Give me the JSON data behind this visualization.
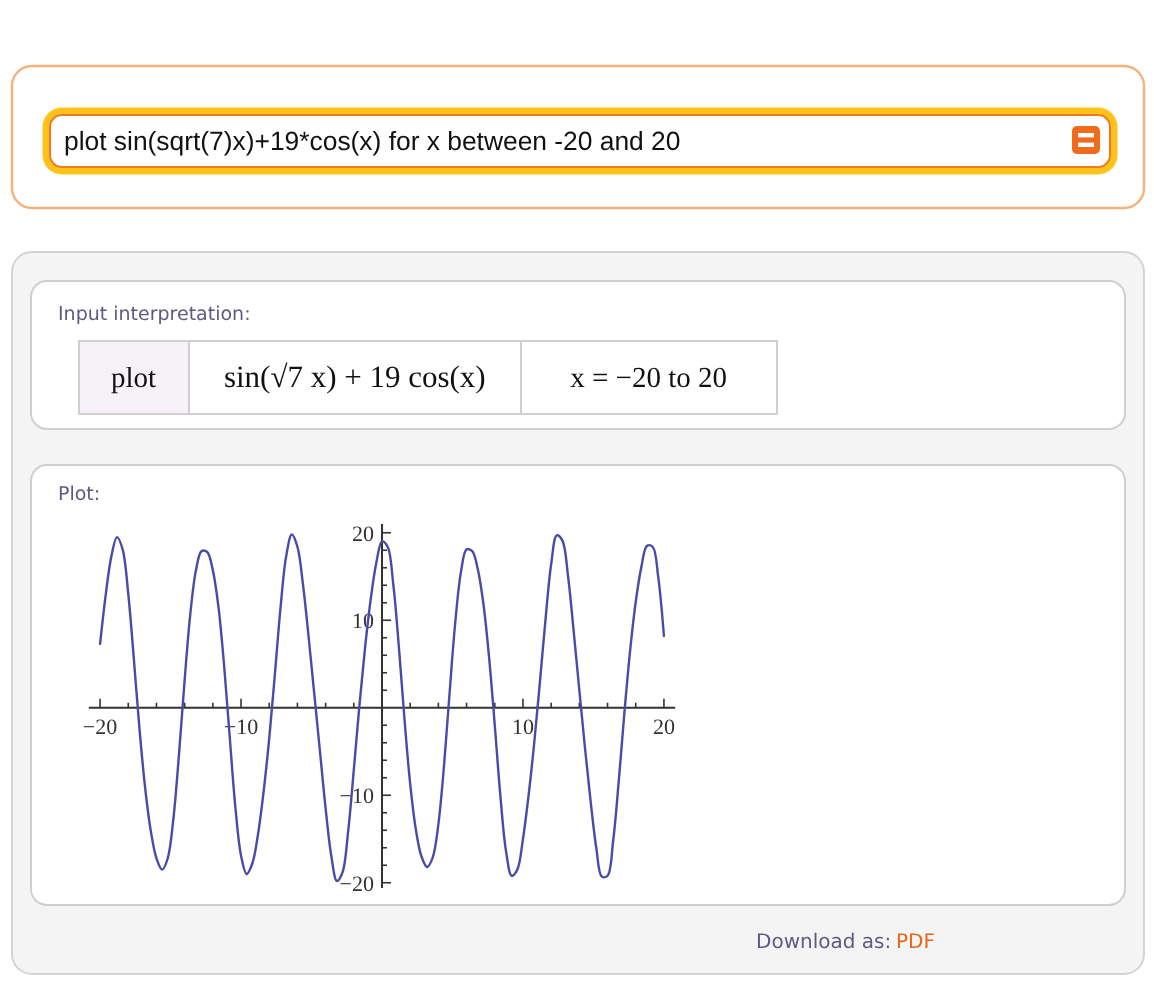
{
  "chart_data": {
    "type": "line",
    "title": "Plot:",
    "annotations": [
      "plot sin(sqrt(7)x)+19*cos(x) for x between -20 and 20",
      "Input interpretation:",
      "plot",
      "sin(√7 x) + 19 cos(x)",
      "x = −20 to 20",
      "Download as:",
      "PDF"
    ],
    "color": "#4a4aa8",
    "x": [
      -20,
      -19.6,
      -19.2,
      -18.8,
      -18.4,
      -18,
      -17.6,
      -17.2,
      -16.8,
      -16.4,
      -16,
      -15.6,
      -15.2,
      -14.8,
      -14.4,
      -14,
      -13.6,
      -13.2,
      -12.8,
      -12.4,
      -12,
      -11.6,
      -11.2,
      -10.8,
      -10.4,
      -10,
      -9.6,
      -9.2,
      -8.8,
      -8.4,
      -8,
      -7.6,
      -7.2,
      -6.8,
      -6.4,
      -6,
      -5.6,
      -5.2,
      -4.8,
      -4.4,
      -4,
      -3.6,
      -3.2,
      -2.8,
      -2.4,
      -2,
      -1.6,
      -1.2,
      -0.8,
      -0.4,
      0,
      0.4,
      0.8,
      1.2,
      1.6,
      2,
      2.4,
      2.8,
      3.2,
      3.6,
      4,
      4.4,
      4.8,
      5.2,
      5.6,
      6,
      6.4,
      6.8,
      7.2,
      7.6,
      8,
      8.4,
      8.8,
      9.2,
      9.6,
      10,
      10.4,
      10.8,
      11.2,
      11.6,
      12,
      12.4,
      12.8,
      13.2,
      13.6,
      14,
      14.4,
      14.8,
      15.2,
      15.6,
      16,
      16.4,
      16.8,
      17.2,
      17.6,
      18,
      18.4,
      18.8,
      19.2,
      19.6,
      20
    ],
    "values": [
      7.3,
      12.9,
      17.3,
      19.5,
      18.1,
      13.0,
      5.5,
      -2.5,
      -9.2,
      -14.1,
      -17.2,
      -18.5,
      -17.2,
      -12.7,
      -5.3,
      3.2,
      10.7,
      15.7,
      17.9,
      17.8,
      15.7,
      11.5,
      4.8,
      -3.4,
      -11.4,
      -16.9,
      -19.0,
      -17.8,
      -14.5,
      -9.6,
      -3.5,
      3.8,
      11.4,
      17.3,
      19.8,
      18.4,
      14.0,
      8.0,
      1.5,
      -5.0,
      -11.5,
      -16.9,
      -19.8,
      -18.8,
      -14.1,
      -7.1,
      0.3,
      6.9,
      12.4,
      16.6,
      19.0,
      18.4,
      14.1,
      6.9,
      -1.4,
      -8.7,
      -13.9,
      -17.0,
      -18.2,
      -17.1,
      -13.3,
      -6.6,
      1.8,
      9.8,
      15.5,
      18.1,
      17.9,
      15.8,
      11.8,
      5.7,
      -2.0,
      -10.1,
      -16.4,
      -19.2,
      -18.5,
      -15.0,
      -10.0,
      -4.0,
      2.9,
      10.1,
      16.4,
      19.7,
      19.1,
      15.0,
      8.7,
      2.0,
      -4.6,
      -10.7,
      -16.0,
      -19.3,
      -19.2,
      -15.2,
      -8.3,
      -0.5,
      6.5,
      12.1,
      16.1,
      18.5,
      18.4,
      14.9,
      8.2
    ],
    "xlim": [
      -20.8,
      20.8
    ],
    "ylim": [
      -20.6,
      21.0
    ],
    "xticks": [
      {
        "value": -20,
        "label": "−20"
      },
      {
        "value": -18,
        "label": null
      },
      {
        "value": -16,
        "label": null
      },
      {
        "value": -14,
        "label": null
      },
      {
        "value": -12,
        "label": null
      },
      {
        "value": -10,
        "label": "−10"
      },
      {
        "value": -8,
        "label": null
      },
      {
        "value": -6,
        "label": null
      },
      {
        "value": -4,
        "label": null
      },
      {
        "value": -2,
        "label": null
      },
      {
        "value": 2,
        "label": null
      },
      {
        "value": 4,
        "label": null
      },
      {
        "value": 6,
        "label": null
      },
      {
        "value": 8,
        "label": null
      },
      10,
      {
        "value": 12,
        "label": null
      },
      {
        "value": 14,
        "label": null
      },
      {
        "value": 16,
        "label": null
      },
      {
        "value": 18,
        "label": null
      },
      20
    ],
    "yticks": [
      {
        "value": -20,
        "label": "−20"
      },
      {
        "value": -18,
        "label": null
      },
      {
        "value": -16,
        "label": null
      },
      {
        "value": -14,
        "label": null
      },
      {
        "value": -12,
        "label": null
      },
      {
        "value": -10,
        "label": "−10"
      },
      {
        "value": -8,
        "label": null
      },
      {
        "value": -6,
        "label": null
      },
      {
        "value": -4,
        "label": null
      },
      {
        "value": -2,
        "label": null
      },
      {
        "value": 2,
        "label": null
      },
      {
        "value": 4,
        "label": null
      },
      {
        "value": 6,
        "label": null
      },
      {
        "value": 8,
        "label": null
      },
      10,
      {
        "value": 12,
        "label": null
      },
      {
        "value": 14,
        "label": null
      },
      {
        "value": 16,
        "label": null
      },
      {
        "value": 18,
        "label": null
      },
      20
    ]
  }
}
